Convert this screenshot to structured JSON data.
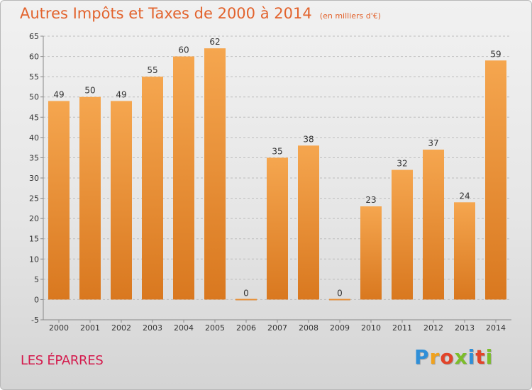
{
  "header": {
    "title": "Autres Impôts et Taxes de 2000 à 2014",
    "unit": "(en milliers d'€)"
  },
  "footer": {
    "commune": "LES ÉPARRES",
    "logo_letters": [
      "P",
      "r",
      "o",
      "x",
      "i",
      "t",
      "i"
    ],
    "logo_colors": [
      "#2f8fd8",
      "#f0a21e",
      "#e2442a",
      "#7cbd2a",
      "#2f8fd8",
      "#e2442a",
      "#7cbd2a"
    ]
  },
  "colors": {
    "bar_light": "#f5a64f",
    "bar_dark": "#d9781f",
    "axis": "#888888",
    "grid": "#bdbdbd",
    "title": "#e2632d"
  },
  "chart_data": {
    "type": "bar",
    "title": "Autres Impôts et Taxes de 2000 à 2014",
    "subtitle": "(en milliers d'€)",
    "xlabel": "",
    "ylabel": "",
    "categories": [
      "2000",
      "2001",
      "2002",
      "2003",
      "2004",
      "2005",
      "2006",
      "2007",
      "2008",
      "2009",
      "2010",
      "2011",
      "2012",
      "2013",
      "2014"
    ],
    "values": [
      49,
      50,
      49,
      55,
      60,
      62,
      0,
      35,
      38,
      0,
      23,
      32,
      37,
      24,
      59
    ],
    "ylim": [
      -5,
      65
    ],
    "yticks": [
      -5,
      0,
      5,
      10,
      15,
      20,
      25,
      30,
      35,
      40,
      45,
      50,
      55,
      60,
      65
    ],
    "grid": "horizontal dashed"
  }
}
